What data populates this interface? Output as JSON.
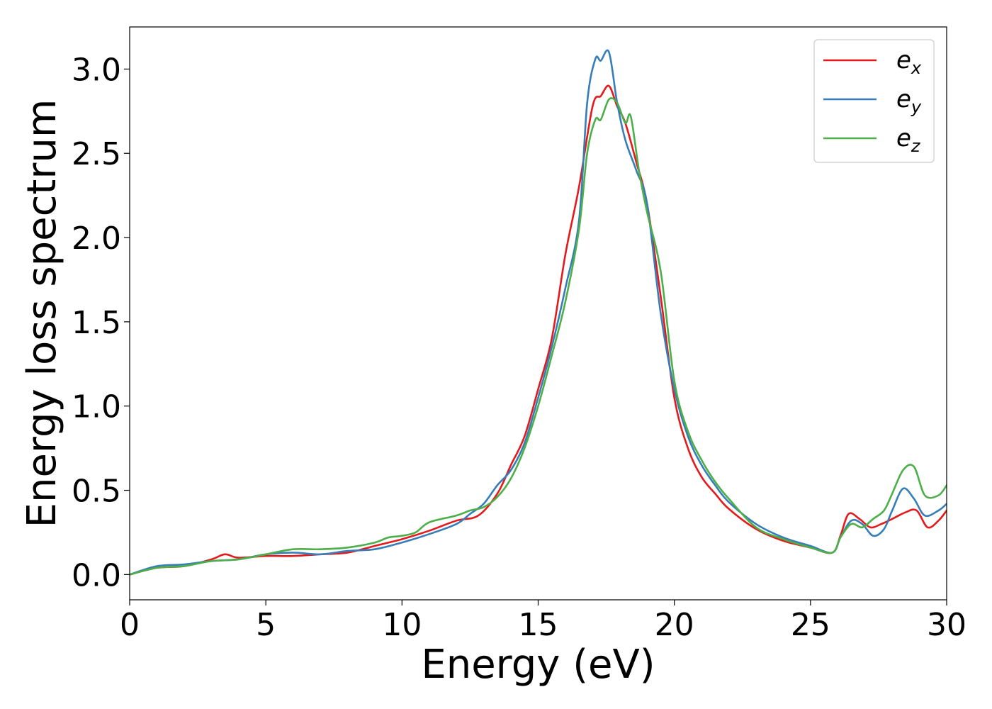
{
  "chart_data": {
    "type": "line",
    "title": "",
    "xlabel": "Energy (eV)",
    "ylabel": "Energy loss spectrum",
    "xlim": [
      0,
      30
    ],
    "ylim": [
      -0.15,
      3.25
    ],
    "xticks": [
      0,
      5,
      10,
      15,
      20,
      25,
      30
    ],
    "xtick_labels": [
      "0",
      "5",
      "10",
      "15",
      "20",
      "25",
      "30"
    ],
    "yticks": [
      0.0,
      0.5,
      1.0,
      1.5,
      2.0,
      2.5,
      3.0
    ],
    "ytick_labels": [
      "0.0",
      "0.5",
      "1.0",
      "1.5",
      "2.0",
      "2.5",
      "3.0"
    ],
    "grid": false,
    "legend_position": "top-right",
    "series": [
      {
        "name": "e_x",
        "legend_main": "e",
        "legend_sub": "x",
        "color": "#e41a1c",
        "points": [
          [
            0,
            0
          ],
          [
            1,
            0.04
          ],
          [
            2,
            0.05
          ],
          [
            3,
            0.09
          ],
          [
            3.5,
            0.12
          ],
          [
            4,
            0.1
          ],
          [
            5,
            0.11
          ],
          [
            6,
            0.11
          ],
          [
            7,
            0.12
          ],
          [
            8,
            0.13
          ],
          [
            9,
            0.17
          ],
          [
            10,
            0.21
          ],
          [
            11,
            0.26
          ],
          [
            12,
            0.32
          ],
          [
            12.8,
            0.35
          ],
          [
            13.5,
            0.48
          ],
          [
            14,
            0.65
          ],
          [
            14.5,
            0.82
          ],
          [
            15,
            1.1
          ],
          [
            15.5,
            1.4
          ],
          [
            16,
            1.9
          ],
          [
            16.5,
            2.3
          ],
          [
            17,
            2.78
          ],
          [
            17.3,
            2.84
          ],
          [
            17.6,
            2.9
          ],
          [
            17.9,
            2.78
          ],
          [
            18.2,
            2.68
          ],
          [
            18.6,
            2.45
          ],
          [
            19,
            2.2
          ],
          [
            19.5,
            1.65
          ],
          [
            20,
            1.05
          ],
          [
            20.5,
            0.75
          ],
          [
            21,
            0.58
          ],
          [
            21.5,
            0.48
          ],
          [
            22,
            0.39
          ],
          [
            23,
            0.27
          ],
          [
            24,
            0.2
          ],
          [
            25,
            0.16
          ],
          [
            25.8,
            0.13
          ],
          [
            26.1,
            0.23
          ],
          [
            26.4,
            0.36
          ],
          [
            26.8,
            0.33
          ],
          [
            27.2,
            0.28
          ],
          [
            27.6,
            0.3
          ],
          [
            28,
            0.33
          ],
          [
            28.5,
            0.37
          ],
          [
            28.9,
            0.38
          ],
          [
            29.3,
            0.28
          ],
          [
            29.7,
            0.32
          ],
          [
            30,
            0.38
          ]
        ]
      },
      {
        "name": "e_y",
        "legend_main": "e",
        "legend_sub": "y",
        "color": "#377eb8",
        "points": [
          [
            0,
            0
          ],
          [
            1,
            0.05
          ],
          [
            2,
            0.06
          ],
          [
            3,
            0.08
          ],
          [
            4,
            0.09
          ],
          [
            5,
            0.12
          ],
          [
            6,
            0.13
          ],
          [
            7,
            0.12
          ],
          [
            8,
            0.14
          ],
          [
            9,
            0.15
          ],
          [
            10,
            0.19
          ],
          [
            11,
            0.24
          ],
          [
            12,
            0.3
          ],
          [
            12.5,
            0.36
          ],
          [
            13,
            0.42
          ],
          [
            13.5,
            0.53
          ],
          [
            14,
            0.62
          ],
          [
            14.5,
            0.78
          ],
          [
            15,
            1.05
          ],
          [
            15.5,
            1.35
          ],
          [
            16,
            1.7
          ],
          [
            16.5,
            2.1
          ],
          [
            16.8,
            2.8
          ],
          [
            17.1,
            3.06
          ],
          [
            17.3,
            3.05
          ],
          [
            17.6,
            3.1
          ],
          [
            17.9,
            2.8
          ],
          [
            18.2,
            2.58
          ],
          [
            18.6,
            2.4
          ],
          [
            19,
            2.2
          ],
          [
            19.5,
            1.55
          ],
          [
            20,
            1.1
          ],
          [
            20.5,
            0.82
          ],
          [
            21,
            0.65
          ],
          [
            21.5,
            0.53
          ],
          [
            22,
            0.43
          ],
          [
            23,
            0.3
          ],
          [
            24,
            0.22
          ],
          [
            25,
            0.17
          ],
          [
            25.8,
            0.13
          ],
          [
            26.1,
            0.22
          ],
          [
            26.5,
            0.32
          ],
          [
            26.9,
            0.3
          ],
          [
            27.3,
            0.23
          ],
          [
            27.7,
            0.27
          ],
          [
            28,
            0.38
          ],
          [
            28.4,
            0.51
          ],
          [
            28.8,
            0.45
          ],
          [
            29.2,
            0.35
          ],
          [
            29.7,
            0.38
          ],
          [
            30,
            0.42
          ]
        ]
      },
      {
        "name": "e_z",
        "legend_main": "e",
        "legend_sub": "z",
        "color": "#4daf4a",
        "points": [
          [
            0,
            0
          ],
          [
            1,
            0.04
          ],
          [
            2,
            0.05
          ],
          [
            3,
            0.08
          ],
          [
            4,
            0.09
          ],
          [
            5,
            0.12
          ],
          [
            6,
            0.15
          ],
          [
            7,
            0.15
          ],
          [
            8,
            0.16
          ],
          [
            9,
            0.19
          ],
          [
            9.5,
            0.22
          ],
          [
            10,
            0.23
          ],
          [
            10.5,
            0.25
          ],
          [
            11,
            0.31
          ],
          [
            12,
            0.35
          ],
          [
            12.5,
            0.38
          ],
          [
            13,
            0.4
          ],
          [
            13.5,
            0.46
          ],
          [
            14,
            0.57
          ],
          [
            14.5,
            0.75
          ],
          [
            15,
            1.0
          ],
          [
            15.5,
            1.3
          ],
          [
            16,
            1.62
          ],
          [
            16.5,
            2.05
          ],
          [
            16.8,
            2.5
          ],
          [
            17.1,
            2.7
          ],
          [
            17.3,
            2.7
          ],
          [
            17.6,
            2.82
          ],
          [
            17.9,
            2.8
          ],
          [
            18.2,
            2.68
          ],
          [
            18.4,
            2.72
          ],
          [
            18.7,
            2.4
          ],
          [
            19,
            2.15
          ],
          [
            19.5,
            1.8
          ],
          [
            20,
            1.15
          ],
          [
            20.5,
            0.85
          ],
          [
            21,
            0.68
          ],
          [
            21.5,
            0.55
          ],
          [
            22,
            0.45
          ],
          [
            23,
            0.28
          ],
          [
            24,
            0.21
          ],
          [
            25,
            0.16
          ],
          [
            25.8,
            0.13
          ],
          [
            26.1,
            0.22
          ],
          [
            26.5,
            0.3
          ],
          [
            26.9,
            0.28
          ],
          [
            27.3,
            0.33
          ],
          [
            27.7,
            0.38
          ],
          [
            28,
            0.48
          ],
          [
            28.4,
            0.62
          ],
          [
            28.8,
            0.64
          ],
          [
            29.2,
            0.47
          ],
          [
            29.7,
            0.47
          ],
          [
            30,
            0.53
          ]
        ]
      }
    ]
  }
}
